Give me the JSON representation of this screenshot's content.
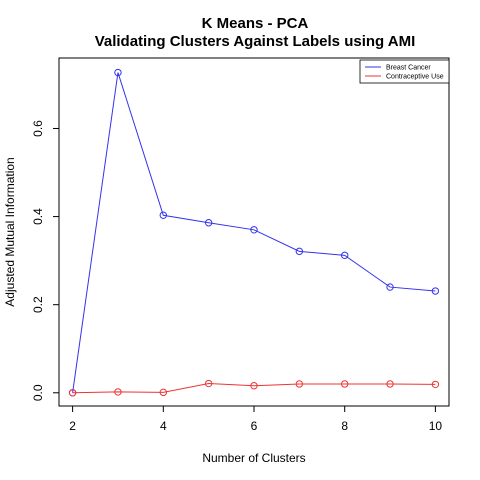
{
  "chart_data": {
    "type": "line",
    "title_line1": "K Means - PCA",
    "title_line2": "Validating Clusters Against Labels using AMI",
    "xlabel": "Number of Clusters",
    "ylabel": "Adjusted Mutual Information",
    "xlim": [
      1.7,
      10.3
    ],
    "ylim": [
      -0.03,
      0.76
    ],
    "x_ticks": [
      2,
      4,
      6,
      8,
      10
    ],
    "y_ticks": [
      0.0,
      0.2,
      0.4,
      0.6
    ],
    "y_tick_labels": [
      "0.0",
      "0.2",
      "0.4",
      "0.6"
    ],
    "legend_position": "top-right",
    "grid": false,
    "x": [
      2,
      3,
      4,
      5,
      6,
      7,
      8,
      9,
      10
    ],
    "series": [
      {
        "name": "Breast Cancer",
        "color": "#3333ee",
        "values": [
          0.0,
          0.727,
          0.403,
          0.386,
          0.37,
          0.321,
          0.312,
          0.24,
          0.231
        ]
      },
      {
        "name": "Contraceptive Use",
        "color": "#ee3333",
        "values": [
          0.0,
          0.002,
          0.001,
          0.021,
          0.016,
          0.02,
          0.02,
          0.02,
          0.019
        ]
      }
    ]
  }
}
